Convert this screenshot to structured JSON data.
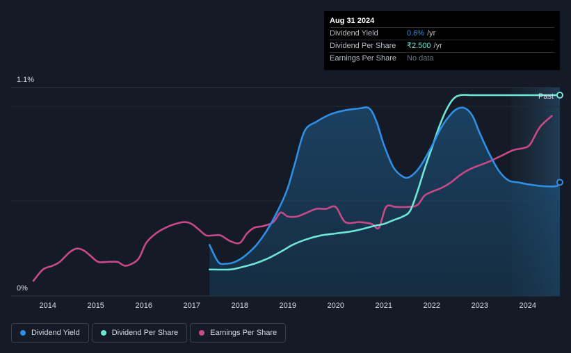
{
  "tooltip": {
    "date": "Aug 31 2024",
    "rows": [
      {
        "label": "Dividend Yield",
        "value": "0.6%",
        "unit": "/yr"
      },
      {
        "label": "Dividend Per Share",
        "value": "₹2.500",
        "unit": "/yr"
      },
      {
        "label": "Earnings Per Share",
        "value": "No data",
        "unit": ""
      }
    ]
  },
  "past_label": "Past",
  "legend": [
    {
      "label": "Dividend Yield",
      "color": "#2f8fe6"
    },
    {
      "label": "Dividend Per Share",
      "color": "#6ee7d7"
    },
    {
      "label": "Earnings Per Share",
      "color": "#c9488a"
    }
  ],
  "chart_data": {
    "type": "line",
    "x_ticks": [
      "2014",
      "2015",
      "2016",
      "2017",
      "2018",
      "2019",
      "2020",
      "2021",
      "2022",
      "2023",
      "2024"
    ],
    "y_ticks": [
      "0%",
      "1.1%"
    ],
    "xlim": [
      2013.7,
      2024.67
    ],
    "ylim": [
      0,
      1.1
    ],
    "series": [
      {
        "name": "Dividend Yield",
        "color": "#2f8fe6",
        "x": [
          2017.37,
          2017.55,
          2017.7,
          2017.9,
          2018.1,
          2018.35,
          2018.6,
          2018.85,
          2019.0,
          2019.15,
          2019.35,
          2019.6,
          2019.9,
          2020.2,
          2020.5,
          2020.7,
          2020.85,
          2021.0,
          2021.2,
          2021.4,
          2021.55,
          2021.75,
          2022.0,
          2022.2,
          2022.4,
          2022.55,
          2022.7,
          2022.85,
          2023.0,
          2023.2,
          2023.4,
          2023.6,
          2023.8,
          2024.0,
          2024.3,
          2024.6,
          2024.67
        ],
        "y": [
          0.27,
          0.18,
          0.17,
          0.18,
          0.21,
          0.27,
          0.36,
          0.48,
          0.57,
          0.7,
          0.87,
          0.92,
          0.96,
          0.98,
          0.99,
          0.99,
          0.92,
          0.8,
          0.68,
          0.63,
          0.63,
          0.68,
          0.79,
          0.89,
          0.96,
          0.99,
          0.99,
          0.95,
          0.86,
          0.75,
          0.66,
          0.61,
          0.6,
          0.59,
          0.58,
          0.58,
          0.6
        ]
      },
      {
        "name": "Dividend Per Share",
        "color": "#6ee7d7",
        "x": [
          2017.37,
          2017.8,
          2018.0,
          2018.3,
          2018.6,
          2018.9,
          2019.1,
          2019.4,
          2019.7,
          2020.0,
          2020.3,
          2020.5,
          2020.8,
          2021.0,
          2021.2,
          2021.4,
          2021.55,
          2021.7,
          2021.85,
          2022.0,
          2022.15,
          2022.3,
          2022.45,
          2022.6,
          2022.8,
          2023.0,
          2023.5,
          2024.0,
          2024.67
        ],
        "y": [
          0.14,
          0.14,
          0.15,
          0.17,
          0.2,
          0.24,
          0.27,
          0.3,
          0.32,
          0.33,
          0.34,
          0.35,
          0.37,
          0.38,
          0.4,
          0.42,
          0.45,
          0.55,
          0.67,
          0.78,
          0.89,
          0.98,
          1.04,
          1.06,
          1.06,
          1.06,
          1.06,
          1.06,
          1.06
        ]
      },
      {
        "name": "Earnings Per Share",
        "color": "#c9488a",
        "x": [
          2013.7,
          2013.9,
          2014.1,
          2014.25,
          2014.45,
          2014.6,
          2014.75,
          2014.9,
          2015.05,
          2015.25,
          2015.45,
          2015.6,
          2015.75,
          2015.9,
          2016.05,
          2016.25,
          2016.45,
          2016.65,
          2016.85,
          2017.0,
          2017.15,
          2017.3,
          2017.45,
          2017.6,
          2017.8,
          2018.0,
          2018.15,
          2018.3,
          2018.5,
          2018.7,
          2018.85,
          2019.0,
          2019.2,
          2019.4,
          2019.6,
          2019.8,
          2020.0,
          2020.2,
          2020.5,
          2020.75,
          2020.9,
          2021.05,
          2021.25,
          2021.5,
          2021.7,
          2021.85,
          2022.0,
          2022.2,
          2022.4,
          2022.6,
          2022.8,
          2023.0,
          2023.2,
          2023.45,
          2023.7,
          2023.9,
          2024.05,
          2024.25,
          2024.5
        ],
        "y": [
          0.08,
          0.14,
          0.16,
          0.18,
          0.23,
          0.25,
          0.24,
          0.21,
          0.18,
          0.18,
          0.18,
          0.16,
          0.17,
          0.2,
          0.28,
          0.33,
          0.36,
          0.38,
          0.39,
          0.38,
          0.35,
          0.32,
          0.32,
          0.32,
          0.29,
          0.28,
          0.33,
          0.36,
          0.37,
          0.39,
          0.44,
          0.42,
          0.42,
          0.44,
          0.46,
          0.46,
          0.47,
          0.39,
          0.39,
          0.38,
          0.36,
          0.47,
          0.47,
          0.47,
          0.48,
          0.53,
          0.55,
          0.57,
          0.6,
          0.64,
          0.67,
          0.69,
          0.71,
          0.74,
          0.77,
          0.78,
          0.8,
          0.89,
          0.95
        ]
      }
    ]
  }
}
